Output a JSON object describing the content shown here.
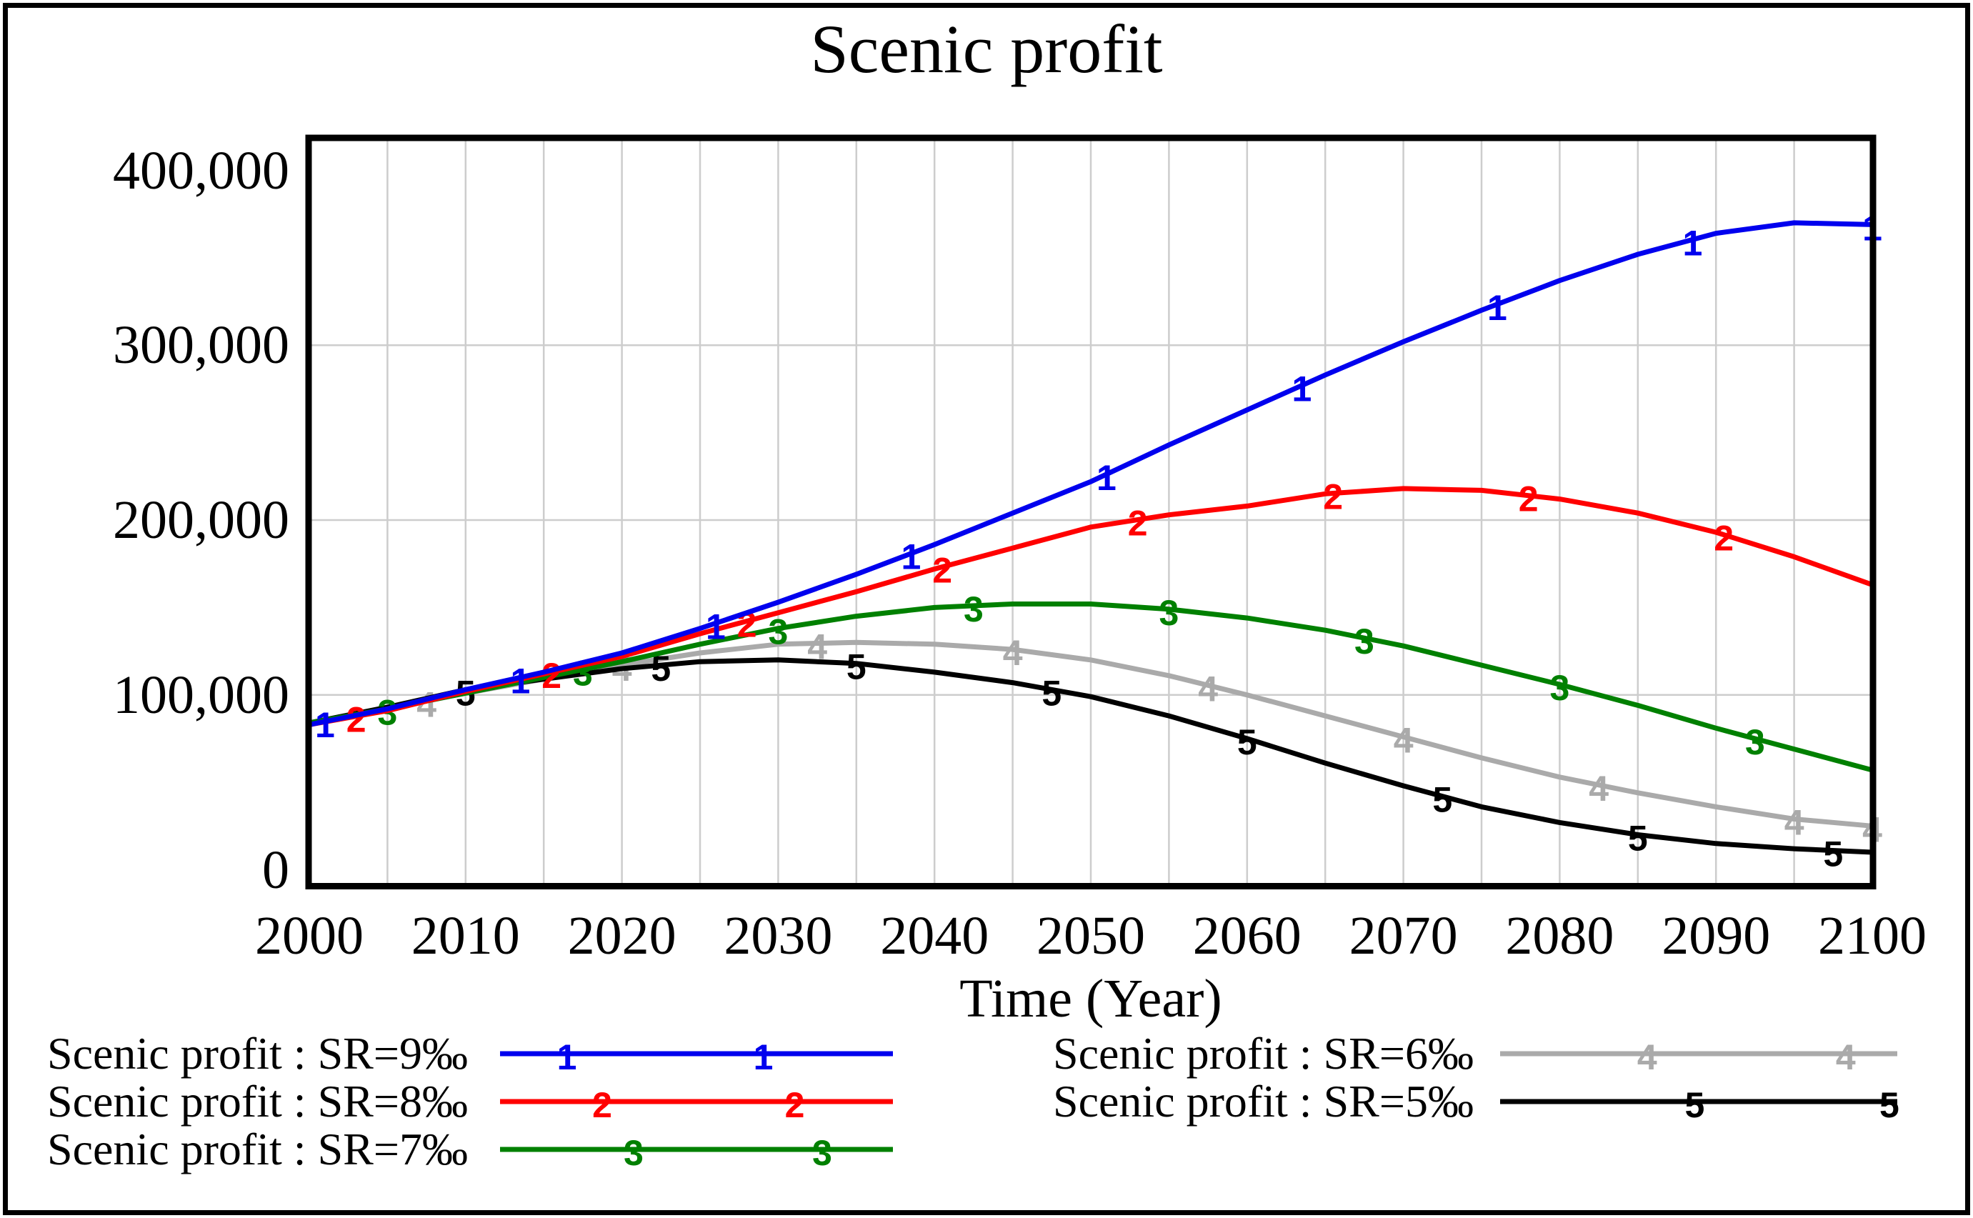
{
  "figure": {
    "background": "#ffffff",
    "border_color": "#000000"
  },
  "chart_data": {
    "type": "line",
    "title": "Scenic profit",
    "xlabel": "Time (Year)",
    "ylabel": "",
    "xlim": [
      2000,
      2100
    ],
    "ylim": [
      0,
      400000
    ],
    "grid": "on",
    "grid_color": "#cdcdcd",
    "x_minor_grid_step_years": 5,
    "x_ticks": [
      {
        "value": 2000,
        "label": "2000"
      },
      {
        "value": 2010,
        "label": "2010"
      },
      {
        "value": 2020,
        "label": "2020"
      },
      {
        "value": 2030,
        "label": "2030"
      },
      {
        "value": 2040,
        "label": "2040"
      },
      {
        "value": 2050,
        "label": "2050"
      },
      {
        "value": 2060,
        "label": "2060"
      },
      {
        "value": 2070,
        "label": "2070"
      },
      {
        "value": 2080,
        "label": "2080"
      },
      {
        "value": 2090,
        "label": "2090"
      },
      {
        "value": 2100,
        "label": "2100"
      }
    ],
    "y_ticks": [
      {
        "value": 400000,
        "label": "400,000"
      },
      {
        "value": 300000,
        "label": "300,000"
      },
      {
        "value": 200000,
        "label": "200,000"
      },
      {
        "value": 100000,
        "label": "100,000"
      },
      {
        "value": 0,
        "label": "0"
      }
    ],
    "x": [
      2000,
      2005,
      2010,
      2015,
      2020,
      2025,
      2030,
      2035,
      2040,
      2045,
      2050,
      2055,
      2060,
      2065,
      2070,
      2075,
      2080,
      2085,
      2090,
      2095,
      2100
    ],
    "series": [
      {
        "name": "Scenic profit : SR=9‰",
        "sr": "SR=9‰",
        "marker": "1",
        "color": "#0000ee",
        "values": [
          83000,
          92000,
          103000,
          113000,
          124000,
          138000,
          153000,
          169000,
          186000,
          204000,
          222000,
          243000,
          263000,
          283000,
          302000,
          320000,
          337000,
          352000,
          364000,
          370000,
          369000
        ],
        "marker_years": [
          2001,
          2013.5,
          2026,
          2038.5,
          2051,
          2063.5,
          2076,
          2088.5,
          2100
        ],
        "legend": {
          "col": 0,
          "row": 0,
          "marker_fracs": [
            0.17,
            0.67
          ]
        }
      },
      {
        "name": "Scenic profit : SR=8‰",
        "sr": "SR=8‰",
        "marker": "2",
        "color": "#ff0000",
        "values": [
          83000,
          91000,
          102000,
          112000,
          122000,
          135000,
          147000,
          159000,
          172000,
          184000,
          196000,
          203000,
          208000,
          215000,
          218000,
          217000,
          212000,
          204000,
          193000,
          179000,
          163000
        ],
        "marker_years": [
          2003,
          2015.5,
          2028,
          2040.5,
          2053,
          2065.5,
          2078,
          2090.5
        ],
        "legend": {
          "col": 0,
          "row": 1,
          "marker_fracs": [
            0.26,
            0.75
          ]
        }
      },
      {
        "name": "Scenic profit : SR=7‰",
        "sr": "SR=7‰",
        "marker": "3",
        "color": "#008000",
        "values": [
          84000,
          92000,
          101000,
          110000,
          119000,
          129000,
          138000,
          145000,
          150000,
          152000,
          152000,
          149000,
          144000,
          137000,
          128000,
          117000,
          106000,
          94000,
          81000,
          69000,
          57000
        ],
        "marker_years": [
          2005,
          2017.5,
          2030,
          2042.5,
          2055,
          2067.5,
          2080,
          2092.5
        ],
        "legend": {
          "col": 0,
          "row": 2,
          "marker_fracs": [
            0.34,
            0.82
          ]
        }
      },
      {
        "name": "Scenic profit : SR=6‰",
        "sr": "SR=6‰",
        "marker": "4",
        "color": "#aaaaaa",
        "values": [
          84000,
          92000,
          101000,
          109000,
          117000,
          124000,
          129000,
          130000,
          129000,
          126000,
          120000,
          111000,
          100000,
          88000,
          76000,
          64000,
          53000,
          44000,
          36000,
          29000,
          25000
        ],
        "marker_years": [
          2007.5,
          2020,
          2032.5,
          2045,
          2057.5,
          2070,
          2082.5,
          2095,
          2100
        ],
        "legend": {
          "col": 1,
          "row": 0,
          "marker_fracs": [
            0.37,
            0.87
          ]
        }
      },
      {
        "name": "Scenic profit : SR=5‰",
        "sr": "SR=5‰",
        "marker": "5",
        "color": "#000000",
        "values": [
          84000,
          93000,
          103000,
          109000,
          115000,
          119000,
          120000,
          118000,
          113000,
          107000,
          99000,
          88000,
          75000,
          61000,
          48000,
          36000,
          27000,
          20000,
          15000,
          12000,
          10000
        ],
        "marker_years": [
          2010,
          2022.5,
          2035,
          2047.5,
          2060,
          2072.5,
          2085,
          2097.5
        ],
        "legend": {
          "col": 1,
          "row": 1,
          "marker_fracs": [
            0.49,
            0.98
          ]
        }
      }
    ],
    "legend_position": "bottom-two-columns",
    "draw_order_bottom_to_top": [
      "SR=6‰",
      "SR=5‰",
      "SR=7‰",
      "SR=8‰",
      "SR=9‰"
    ]
  }
}
